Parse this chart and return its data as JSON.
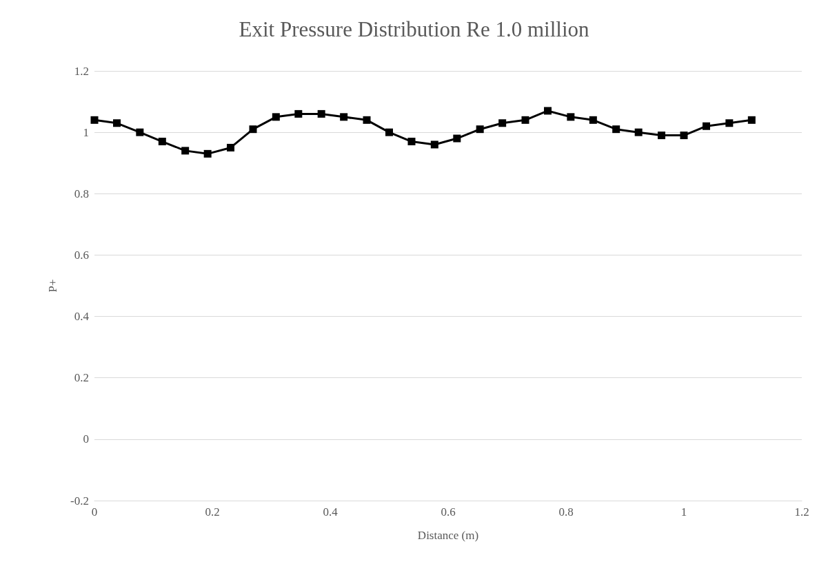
{
  "chart_data": {
    "type": "line",
    "title": "Exit Pressure Distribution Re 1.0 million",
    "xlabel": "Distance (m)",
    "ylabel": "P+",
    "x": [
      0,
      0.038,
      0.077,
      0.115,
      0.154,
      0.192,
      0.231,
      0.269,
      0.308,
      0.346,
      0.385,
      0.423,
      0.462,
      0.5,
      0.538,
      0.577,
      0.615,
      0.654,
      0.692,
      0.731,
      0.769,
      0.808,
      0.846,
      0.885,
      0.923,
      0.962,
      1,
      1.038,
      1.077,
      1.115
    ],
    "series": [
      {
        "color": "#000000",
        "values": [
          1.04,
          1.03,
          1.0,
          0.97,
          0.94,
          0.93,
          0.95,
          1.01,
          1.05,
          1.06,
          1.06,
          1.05,
          1.04,
          1.0,
          0.97,
          0.96,
          0.98,
          1.01,
          1.03,
          1.04,
          1.07,
          1.05,
          1.04,
          1.01,
          1.0,
          0.99,
          0.99,
          1.02,
          1.03,
          1.04
        ]
      }
    ],
    "xlim": [
      0,
      1.2
    ],
    "xticks": [
      0,
      0.2,
      0.4,
      0.6,
      0.8,
      1,
      1.2
    ],
    "ylim": [
      -0.2,
      1.2
    ],
    "yticks": [
      -0.2,
      0,
      0.2,
      0.4,
      0.6,
      0.8,
      1,
      1.2
    ],
    "grid": "y",
    "marker": "square",
    "line_style": "solid"
  }
}
